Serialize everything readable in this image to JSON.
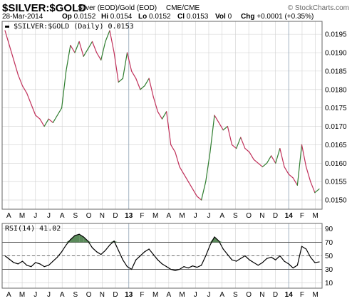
{
  "header": {
    "symbol": "$SILVER:$GOLD",
    "description": "Silver (EOD)/Gold (EOD)",
    "exchange": "CME/CME",
    "copyright": "© StockCharts.com",
    "date": "28-Mar-2014",
    "quote": {
      "op_label": "Op",
      "op_value": "0.0152",
      "hi_label": "Hi",
      "hi_value": "0.0154",
      "lo_label": "Lo",
      "lo_value": "0.0152",
      "cl_label": "Cl",
      "cl_value": "0.0153",
      "vol_label": "Vol",
      "vol_value": "0",
      "chg_label": "Chg",
      "chg_value": "+0.0001 (+0.35%)"
    }
  },
  "colors": {
    "up": "#2e7d2e",
    "down": "#c0305a",
    "rsi_line": "#000000",
    "rsi_fill": "#5a8a5a",
    "grid": "#d0d0d0",
    "frame": "#666666"
  },
  "chart_data": [
    {
      "type": "line",
      "legend": "$SILVER:$GOLD (Daily) 0.0153",
      "x_tick_labels": [
        "A",
        "M",
        "J",
        "J",
        "A",
        "S",
        "O",
        "N",
        "D",
        "13",
        "F",
        "M",
        "A",
        "M",
        "J",
        "J",
        "A",
        "S",
        "O",
        "N",
        "D",
        "14",
        "F",
        "M"
      ],
      "y_ticks": [
        0.015,
        0.0155,
        0.016,
        0.0165,
        0.017,
        0.0175,
        0.018,
        0.0185,
        0.019,
        0.0195
      ],
      "y_tick_labels": [
        "0.0150",
        "0.0155",
        "0.0160",
        "0.0165",
        "0.0170",
        "0.0175",
        "0.0180",
        "0.0185",
        "0.0190",
        "0.0195"
      ],
      "ylim": [
        0.01475,
        0.01985
      ],
      "series": [
        {
          "values": [
            0.0196,
            0.0192,
            0.0188,
            0.0184,
            0.0181,
            0.0179,
            0.0176,
            0.0173,
            0.0172,
            0.017,
            0.0172,
            0.0171,
            0.0173,
            0.0175,
            0.0185,
            0.0192,
            0.019,
            0.0193,
            0.0189,
            0.0191,
            0.0193,
            0.019,
            0.0188,
            0.0193,
            0.0196,
            0.019,
            0.0182,
            0.0183,
            0.019,
            0.0185,
            0.0183,
            0.018,
            0.0181,
            0.0183,
            0.0178,
            0.0174,
            0.0172,
            0.0174,
            0.0165,
            0.0163,
            0.0159,
            0.0157,
            0.0155,
            0.0153,
            0.0151,
            0.015,
            0.0155,
            0.0163,
            0.0173,
            0.0171,
            0.0169,
            0.017,
            0.0165,
            0.0164,
            0.0167,
            0.0164,
            0.0163,
            0.0161,
            0.016,
            0.0159,
            0.016,
            0.0162,
            0.016,
            0.0164,
            0.0159,
            0.0157,
            0.0156,
            0.0154,
            0.0165,
            0.0159,
            0.0155,
            0.0152,
            0.0153
          ]
        }
      ]
    },
    {
      "type": "line",
      "legend": "RSI(14) 41.02",
      "x_tick_labels": [
        "A",
        "M",
        "J",
        "J",
        "A",
        "S",
        "O",
        "N",
        "D",
        "13",
        "F",
        "M",
        "A",
        "M",
        "J",
        "J",
        "A",
        "S",
        "O",
        "N",
        "D",
        "14",
        "F",
        "M"
      ],
      "y_ticks": [
        10,
        30,
        50,
        70,
        90
      ],
      "y_tick_labels": [
        "10",
        "30",
        "50",
        "70",
        "90"
      ],
      "ylim": [
        2,
        98
      ],
      "reference_lines": [
        70,
        50,
        30
      ],
      "series": [
        {
          "values": [
            50,
            45,
            40,
            38,
            42,
            36,
            34,
            40,
            38,
            34,
            36,
            42,
            48,
            56,
            66,
            74,
            80,
            82,
            78,
            72,
            62,
            56,
            52,
            58,
            66,
            72,
            58,
            44,
            34,
            30,
            44,
            50,
            56,
            60,
            52,
            44,
            38,
            34,
            30,
            28,
            30,
            34,
            32,
            35,
            33,
            36,
            50,
            66,
            78,
            72,
            60,
            52,
            44,
            42,
            46,
            50,
            44,
            40,
            36,
            40,
            46,
            48,
            44,
            50,
            42,
            38,
            32,
            36,
            64,
            60,
            48,
            40,
            41
          ]
        }
      ]
    }
  ]
}
